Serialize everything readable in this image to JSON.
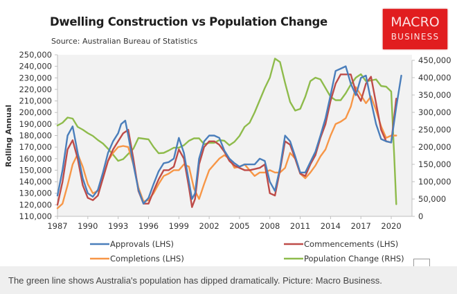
{
  "logo": {
    "line1": "MACRO",
    "line2": "BUSINESS"
  },
  "caption": "The green line shows Australia's population has dipped dramatically. Picture: Macro Business.",
  "chart_data": {
    "type": "line",
    "title": "Dwelling Construction vs Population Change",
    "subtitle": "Source: Australian Bureau of Statistics",
    "ylabel": "Rolling Annual",
    "xlabel": "",
    "xlim": [
      1987,
      2021
    ],
    "x_ticks": [
      "1987",
      "1990",
      "1993",
      "1996",
      "1999",
      "2002",
      "2005",
      "2008",
      "2011",
      "2014",
      "2017",
      "2020"
    ],
    "ylim_left": [
      110000,
      250000
    ],
    "y_ticks_left": [
      "250,000",
      "240,000",
      "230,000",
      "220,000",
      "210,000",
      "200,000",
      "190,000",
      "180,000",
      "170,000",
      "160,000",
      "150,000",
      "140,000",
      "130,000",
      "120,000",
      "110,000"
    ],
    "ylim_right": [
      0,
      450000
    ],
    "y_ticks_right": [
      "450,000",
      "400,000",
      "350,000",
      "300,000",
      "250,000",
      "200,000",
      "150,000",
      "100,000",
      "50,000",
      "0"
    ],
    "grid": false,
    "legend_position": "bottom",
    "colors": {
      "approvals": "#4a7ebb",
      "commencements": "#be4b48",
      "completions": "#f79646",
      "population": "#8ebb4b",
      "plot_bg": "#f2f2f2"
    },
    "series": [
      {
        "name": "Approvals (LHS)",
        "axis": "left",
        "color": "#4a7ebb",
        "x": [
          1987,
          1987.5,
          1988,
          1988.5,
          1989,
          1989.5,
          1990,
          1990.5,
          1991,
          1991.5,
          1992,
          1992.5,
          1993,
          1993.3,
          1993.7,
          1994,
          1994.5,
          1995,
          1995.5,
          1996,
          1996.5,
          1997,
          1997.5,
          1998,
          1998.5,
          1999,
          1999.5,
          2000,
          2000.3,
          2000.6,
          2001,
          2001.5,
          2002,
          2002.5,
          2003,
          2003.5,
          2004,
          2004.5,
          2005,
          2005.5,
          2006,
          2006.5,
          2007,
          2007.5,
          2008,
          2008.5,
          2009,
          2009.5,
          2010,
          2010.5,
          2011,
          2011.5,
          2012,
          2012.5,
          2013,
          2013.5,
          2014,
          2014.5,
          2015,
          2015.5,
          2016,
          2016.5,
          2017,
          2017.5,
          2018,
          2018.5,
          2019,
          2019.5,
          2020,
          2020.5,
          2021
        ],
        "values": [
          128000,
          150000,
          180000,
          188000,
          165000,
          143000,
          130000,
          127000,
          133000,
          148000,
          165000,
          175000,
          182000,
          190000,
          193000,
          180000,
          155000,
          133000,
          121000,
          126000,
          138000,
          149000,
          156000,
          157000,
          160000,
          178000,
          165000,
          140000,
          125000,
          130000,
          160000,
          175000,
          180000,
          180000,
          178000,
          167000,
          160000,
          156000,
          153000,
          155000,
          155000,
          155000,
          160000,
          158000,
          140000,
          132000,
          152000,
          180000,
          175000,
          162000,
          148000,
          148000,
          157000,
          166000,
          180000,
          195000,
          215000,
          236000,
          238000,
          240000,
          225000,
          215000,
          230000,
          232000,
          210000,
          190000,
          177000,
          175000,
          174000,
          205000,
          232000
        ]
      },
      {
        "name": "Commencements (LHS)",
        "axis": "left",
        "color": "#be4b48",
        "x": [
          1987,
          1987.5,
          1988,
          1988.5,
          1989,
          1989.5,
          1990,
          1990.5,
          1991,
          1991.5,
          1992,
          1992.5,
          1993,
          1993.5,
          1994,
          1994.5,
          1995,
          1995.5,
          1996,
          1996.5,
          1997,
          1997.5,
          1998,
          1998.5,
          1999,
          1999.5,
          2000,
          2000.3,
          2000.6,
          2001,
          2001.5,
          2002,
          2002.5,
          2003,
          2003.5,
          2004,
          2004.5,
          2005,
          2005.5,
          2006,
          2006.5,
          2007,
          2007.5,
          2008,
          2008.5,
          2009,
          2009.5,
          2010,
          2010.5,
          2011,
          2011.5,
          2012,
          2012.5,
          2013,
          2013.5,
          2014,
          2014.5,
          2015,
          2015.5,
          2016,
          2016.5,
          2017,
          2017.5,
          2018,
          2018.5,
          2019,
          2019.5,
          2020,
          2020.5
        ],
        "values": [
          120000,
          140000,
          168000,
          176000,
          160000,
          137000,
          126000,
          124000,
          128000,
          143000,
          158000,
          168000,
          175000,
          182000,
          185000,
          160000,
          132000,
          121000,
          121000,
          132000,
          142000,
          150000,
          150000,
          153000,
          168000,
          160000,
          135000,
          118000,
          125000,
          155000,
          170000,
          175000,
          175000,
          172000,
          166000,
          158000,
          154000,
          152000,
          150000,
          150000,
          151000,
          152000,
          155000,
          130000,
          128000,
          150000,
          175000,
          172000,
          160000,
          147000,
          145000,
          155000,
          163000,
          178000,
          190000,
          210000,
          225000,
          233000,
          233000,
          233000,
          218000,
          210000,
          225000,
          231000,
          208000,
          185000,
          175000,
          174000,
          212000
        ]
      },
      {
        "name": "Completions (LHS)",
        "axis": "left",
        "color": "#f79646",
        "x": [
          1987,
          1987.5,
          1988,
          1988.5,
          1989,
          1989.5,
          1990,
          1990.5,
          1991,
          1991.5,
          1992,
          1992.5,
          1993,
          1993.5,
          1994,
          1994.5,
          1995,
          1995.5,
          1996,
          1996.5,
          1997,
          1997.5,
          1998,
          1998.5,
          1999,
          1999.5,
          2000,
          2000.5,
          2001,
          2001.5,
          2002,
          2002.5,
          2003,
          2003.5,
          2004,
          2004.5,
          2005,
          2005.5,
          2006,
          2006.5,
          2007,
          2007.5,
          2008,
          2008.5,
          2009,
          2009.5,
          2010,
          2010.5,
          2011,
          2011.5,
          2012,
          2012.5,
          2013,
          2013.5,
          2014,
          2014.5,
          2015,
          2015.5,
          2016,
          2016.5,
          2017,
          2017.5,
          2018,
          2018.5,
          2019,
          2019.5,
          2020,
          2020.5
        ],
        "values": [
          117000,
          121000,
          137000,
          155000,
          164000,
          153000,
          138000,
          130000,
          132000,
          143000,
          158000,
          165000,
          170000,
          171000,
          170000,
          155000,
          135000,
          123000,
          124000,
          130000,
          138000,
          145000,
          147000,
          150000,
          150000,
          155000,
          153000,
          134000,
          125000,
          138000,
          150000,
          155000,
          160000,
          163000,
          160000,
          152000,
          153000,
          155000,
          150000,
          145000,
          148000,
          148000,
          150000,
          148000,
          148000,
          152000,
          165000,
          160000,
          147000,
          143000,
          148000,
          154000,
          162000,
          168000,
          180000,
          190000,
          192000,
          195000,
          205000,
          222000,
          215000,
          208000,
          214000,
          202000,
          188000,
          178000,
          180000,
          180000
        ]
      },
      {
        "name": "Population Change (RHS)",
        "axis": "right",
        "color": "#8ebb4b",
        "x": [
          1987,
          1987.5,
          1988,
          1988.5,
          1989,
          1989.5,
          1990,
          1990.5,
          1991,
          1991.5,
          1992,
          1992.5,
          1993,
          1993.5,
          1994,
          1994.5,
          1995,
          1995.5,
          1996,
          1996.5,
          1997,
          1997.5,
          1998,
          1998.5,
          1999,
          1999.5,
          2000,
          2000.5,
          2001,
          2001.5,
          2002,
          2002.5,
          2003,
          2003.5,
          2004,
          2004.5,
          2005,
          2005.5,
          2006,
          2006.5,
          2007,
          2007.5,
          2008,
          2008.5,
          2009,
          2009.5,
          2010,
          2010.5,
          2011,
          2011.5,
          2012,
          2012.5,
          2013,
          2013.5,
          2014,
          2014.5,
          2015,
          2015.5,
          2016,
          2016.5,
          2017,
          2017.5,
          2018,
          2018.5,
          2019,
          2019.5,
          2020,
          2020.3,
          2020.5
        ],
        "values": [
          262000,
          270000,
          285000,
          282000,
          258000,
          250000,
          240000,
          232000,
          220000,
          210000,
          195000,
          178000,
          160000,
          165000,
          180000,
          195000,
          226000,
          224000,
          222000,
          200000,
          182000,
          183000,
          190000,
          198000,
          198000,
          205000,
          218000,
          225000,
          225000,
          208000,
          212000,
          212000,
          220000,
          218000,
          205000,
          215000,
          232000,
          258000,
          270000,
          300000,
          335000,
          370000,
          400000,
          455000,
          445000,
          385000,
          330000,
          305000,
          310000,
          345000,
          390000,
          400000,
          395000,
          370000,
          345000,
          335000,
          335000,
          355000,
          380000,
          400000,
          410000,
          390000,
          392000,
          395000,
          376000,
          374000,
          360000,
          170000,
          35000
        ]
      }
    ]
  }
}
